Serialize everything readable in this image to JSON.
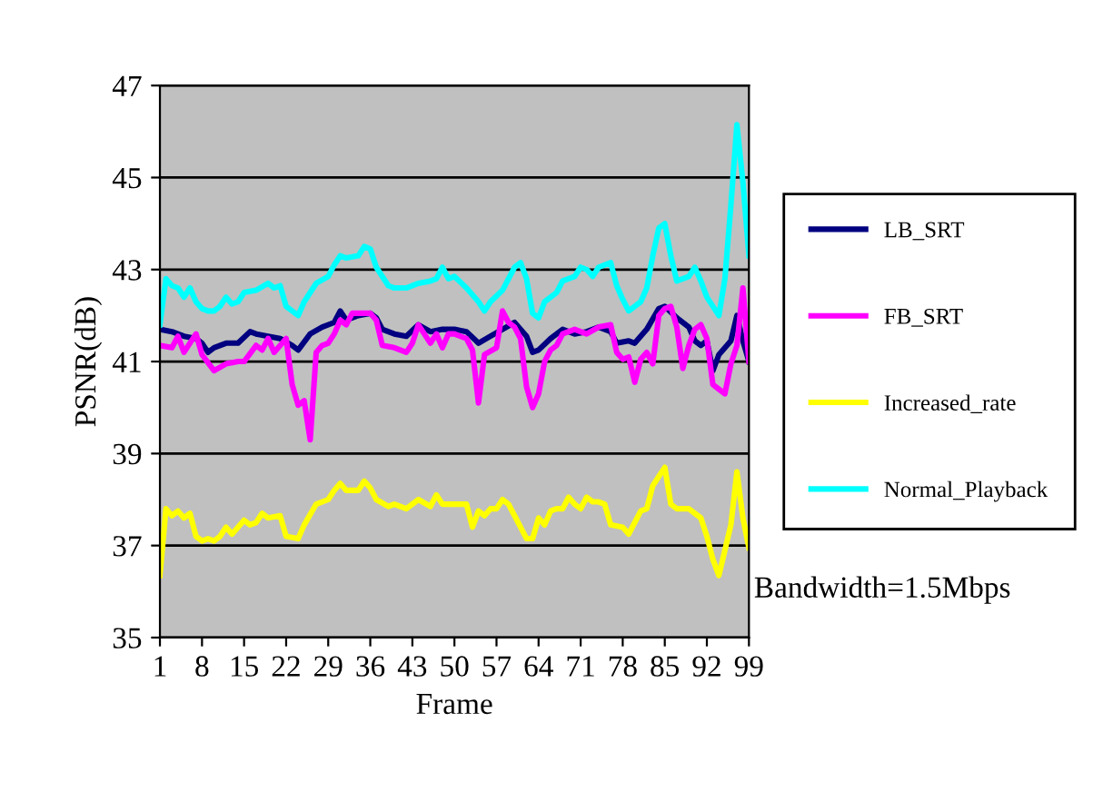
{
  "chart_data": {
    "type": "line",
    "xlabel": "Frame",
    "ylabel": "PSNR(dB)",
    "xlim": [
      1,
      99
    ],
    "xticks": [
      1,
      8,
      15,
      22,
      29,
      36,
      43,
      50,
      57,
      64,
      71,
      78,
      85,
      92,
      99
    ],
    "ylim": [
      35,
      47
    ],
    "yticks": [
      35,
      37,
      39,
      41,
      43,
      45,
      47
    ],
    "grid": "y",
    "legend": "right",
    "marker": "none",
    "line_style": "solid",
    "annotations": [
      "Bandwidth=1.5Mbps"
    ],
    "series": [
      {
        "name": "LB_SRT",
        "color": "#000080",
        "x": [
          1,
          3,
          5,
          7,
          8,
          9,
          10,
          12,
          14,
          16,
          17,
          19,
          21,
          23,
          24,
          26,
          28,
          30,
          31,
          32,
          34,
          36,
          37,
          38,
          40,
          42,
          44,
          46,
          48,
          50,
          52,
          54,
          56,
          58,
          60,
          62,
          63,
          64,
          66,
          68,
          70,
          72,
          74,
          76,
          77,
          79,
          80,
          82,
          84,
          85,
          87,
          89,
          90,
          91,
          92,
          93,
          94,
          96,
          97,
          98,
          99
        ],
        "values": [
          41.7,
          41.65,
          41.55,
          41.5,
          41.4,
          41.2,
          41.3,
          41.4,
          41.4,
          41.65,
          41.6,
          41.55,
          41.5,
          41.35,
          41.25,
          41.6,
          41.75,
          41.85,
          42.1,
          41.9,
          42.0,
          42.05,
          41.95,
          41.7,
          41.6,
          41.55,
          41.8,
          41.65,
          41.7,
          41.7,
          41.65,
          41.4,
          41.55,
          41.7,
          41.85,
          41.55,
          41.2,
          41.25,
          41.5,
          41.7,
          41.6,
          41.65,
          41.75,
          41.65,
          41.4,
          41.45,
          41.4,
          41.7,
          42.15,
          42.2,
          41.95,
          41.75,
          41.45,
          41.35,
          41.45,
          40.8,
          41.15,
          41.45,
          42.0,
          41.45,
          41.0
        ]
      },
      {
        "name": "FB_SRT",
        "color": "#ff00ff",
        "x": [
          1,
          3,
          4,
          5,
          7,
          8,
          10,
          12,
          14,
          15,
          17,
          18,
          19,
          20,
          22,
          23,
          24,
          25,
          26,
          27,
          28,
          29,
          30,
          31,
          32,
          33,
          35,
          36,
          37,
          38,
          40,
          42,
          43,
          44,
          46,
          47,
          48,
          49,
          50,
          52,
          53,
          54,
          55,
          57,
          58,
          59,
          60,
          61,
          62,
          63,
          64,
          65,
          66,
          67,
          68,
          70,
          72,
          74,
          76,
          77,
          78,
          79,
          80,
          81,
          82,
          83,
          84,
          85,
          86,
          87,
          88,
          89,
          90,
          91,
          92,
          93,
          94,
          95,
          96,
          97,
          98,
          99
        ],
        "values": [
          41.35,
          41.3,
          41.55,
          41.2,
          41.6,
          41.15,
          40.8,
          40.95,
          41.0,
          41.0,
          41.35,
          41.25,
          41.5,
          41.2,
          41.5,
          40.5,
          40.05,
          40.15,
          39.3,
          41.2,
          41.35,
          41.4,
          41.6,
          41.9,
          41.8,
          42.05,
          42.05,
          42.05,
          41.9,
          41.35,
          41.3,
          41.2,
          41.4,
          41.8,
          41.4,
          41.6,
          41.3,
          41.6,
          41.6,
          41.5,
          41.25,
          40.1,
          41.15,
          41.3,
          42.1,
          41.85,
          41.75,
          41.5,
          40.45,
          40.0,
          40.3,
          41.0,
          41.25,
          41.35,
          41.6,
          41.7,
          41.6,
          41.75,
          41.8,
          41.2,
          41.05,
          41.1,
          40.55,
          41.05,
          41.2,
          40.95,
          42.0,
          42.15,
          42.2,
          41.75,
          40.85,
          41.35,
          41.7,
          41.8,
          41.5,
          40.5,
          40.4,
          40.3,
          40.95,
          41.35,
          42.6,
          41.0
        ]
      },
      {
        "name": "Increased_rate",
        "color": "#ffff00",
        "x": [
          1,
          2,
          3,
          4,
          5,
          6,
          7,
          8,
          9,
          10,
          11,
          12,
          13,
          15,
          16,
          17,
          18,
          19,
          21,
          22,
          24,
          25,
          27,
          29,
          30,
          31,
          32,
          34,
          35,
          36,
          37,
          39,
          40,
          42,
          44,
          46,
          47,
          48,
          50,
          52,
          53,
          54,
          55,
          56,
          57,
          58,
          59,
          60,
          61,
          62,
          63,
          64,
          65,
          66,
          67,
          68,
          69,
          70,
          71,
          72,
          73,
          74,
          75,
          76,
          78,
          79,
          81,
          82,
          83,
          84,
          85,
          86,
          87,
          89,
          90,
          91,
          92,
          93,
          94,
          95,
          96,
          97,
          98,
          99
        ],
        "values": [
          36.35,
          37.8,
          37.65,
          37.75,
          37.6,
          37.7,
          37.2,
          37.1,
          37.15,
          37.1,
          37.2,
          37.4,
          37.25,
          37.55,
          37.45,
          37.5,
          37.7,
          37.6,
          37.65,
          37.2,
          37.15,
          37.45,
          37.9,
          38.0,
          38.2,
          38.35,
          38.2,
          38.2,
          38.4,
          38.25,
          38.0,
          37.85,
          37.9,
          37.8,
          38.0,
          37.85,
          38.1,
          37.9,
          37.9,
          37.9,
          37.4,
          37.75,
          37.65,
          37.8,
          37.8,
          38.0,
          37.9,
          37.65,
          37.4,
          37.15,
          37.15,
          37.6,
          37.45,
          37.75,
          37.8,
          37.8,
          38.05,
          37.9,
          37.8,
          38.05,
          37.95,
          37.95,
          37.9,
          37.45,
          37.4,
          37.25,
          37.75,
          37.8,
          38.3,
          38.5,
          38.7,
          37.9,
          37.8,
          37.8,
          37.7,
          37.6,
          37.2,
          36.7,
          36.35,
          36.9,
          37.45,
          38.6,
          37.6,
          36.95
        ]
      },
      {
        "name": "Normal_Playback",
        "color": "#00ffff",
        "x": [
          1,
          2,
          3,
          4,
          5,
          6,
          7,
          8,
          9,
          10,
          11,
          12,
          13,
          14,
          15,
          17,
          19,
          20,
          21,
          22,
          23,
          24,
          25,
          27,
          29,
          30,
          31,
          32,
          34,
          35,
          36,
          37,
          38,
          39,
          40,
          42,
          44,
          46,
          47,
          48,
          49,
          50,
          52,
          54,
          55,
          56,
          58,
          60,
          61,
          62,
          63,
          64,
          65,
          67,
          68,
          70,
          71,
          72,
          73,
          74,
          76,
          77,
          78,
          79,
          81,
          82,
          83,
          84,
          85,
          86,
          87,
          89,
          90,
          91,
          92,
          94,
          95,
          96,
          97,
          98,
          99
        ],
        "values": [
          41.8,
          42.8,
          42.65,
          42.6,
          42.4,
          42.6,
          42.3,
          42.15,
          42.1,
          42.1,
          42.2,
          42.4,
          42.25,
          42.3,
          42.5,
          42.55,
          42.7,
          42.6,
          42.65,
          42.2,
          42.1,
          42.0,
          42.3,
          42.7,
          42.85,
          43.1,
          43.3,
          43.25,
          43.3,
          43.5,
          43.45,
          43.05,
          42.85,
          42.65,
          42.6,
          42.6,
          42.7,
          42.75,
          42.8,
          43.05,
          42.8,
          42.85,
          42.6,
          42.3,
          42.1,
          42.3,
          42.55,
          43.05,
          43.15,
          42.8,
          42.05,
          41.95,
          42.3,
          42.5,
          42.75,
          42.85,
          43.05,
          43.0,
          42.85,
          43.05,
          43.15,
          42.65,
          42.35,
          42.1,
          42.3,
          42.6,
          43.3,
          43.9,
          44.0,
          43.3,
          42.75,
          42.85,
          43.05,
          42.75,
          42.4,
          42.0,
          42.8,
          44.4,
          46.15,
          44.9,
          43.3
        ]
      }
    ]
  }
}
